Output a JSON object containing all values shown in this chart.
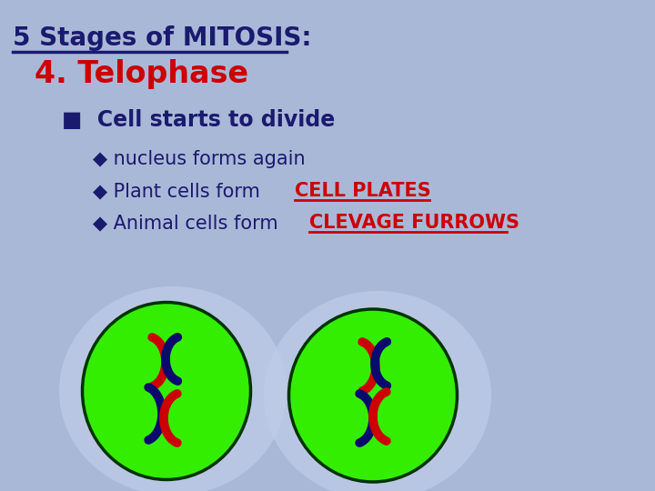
{
  "bg_color": "#aab8d8",
  "title_line1": "5 Stages of MITOSIS:",
  "title_line2": "4. Telophase",
  "bullet_header": "■  Cell starts to divide",
  "bullet1": "◆ nucleus forms again",
  "bullet2_pre": "◆ Plant cells form ",
  "bullet2_hi": "CELL PLATES",
  "bullet3_pre": "◆ Animal cells form ",
  "bullet3_hi": "CLEVAGE FURROWS",
  "title1_color": "#1a1a6e",
  "title2_color": "#cc0000",
  "bullet_color": "#1a1a6e",
  "highlight_color": "#cc0000",
  "cell_outer_color": "#c0cce8",
  "cell_green_color": "#33ee00",
  "cell_green_edge": "#003300",
  "chrom_red": "#cc0000",
  "chrom_blue": "#0a0a6e"
}
